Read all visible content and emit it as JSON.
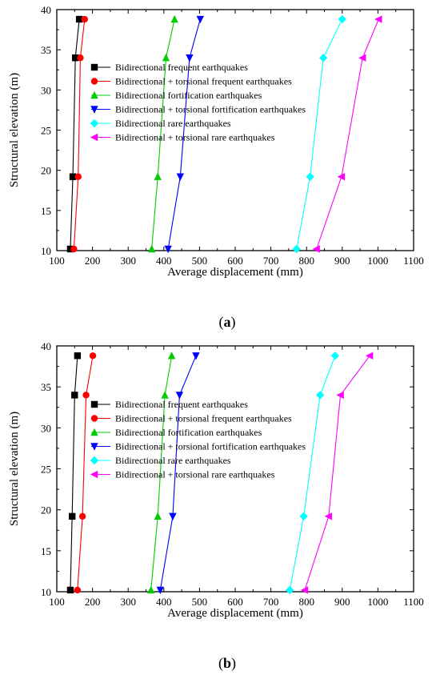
{
  "chart_data": [
    {
      "type": "line",
      "panel_label": "a",
      "xlabel": "Average displacement (mm)",
      "ylabel": "Structural elevation (m)",
      "xlim": [
        100,
        1100
      ],
      "ylim": [
        10,
        40
      ],
      "xticks": [
        100,
        200,
        300,
        400,
        500,
        600,
        700,
        800,
        900,
        1000,
        1100
      ],
      "yticks": [
        10,
        15,
        20,
        25,
        30,
        35,
        40
      ],
      "grid": false,
      "legend_position": "top-right",
      "series": [
        {
          "name": "Bidirectional frequent earthquakes",
          "color": "#000000",
          "marker": "square",
          "points": [
            [
              138,
              10.2
            ],
            [
              145,
              19.2
            ],
            [
              152,
              34.0
            ],
            [
              163,
              38.8
            ]
          ]
        },
        {
          "name": "Bidirectional + torsional frequent earthquakes",
          "color": "#ff0000",
          "marker": "circle",
          "points": [
            [
              148,
              10.2
            ],
            [
              160,
              19.2
            ],
            [
              166,
              34.0
            ],
            [
              178,
              38.8
            ]
          ]
        },
        {
          "name": "Bidirectional fortification earthquakes",
          "color": "#00cc00",
          "marker": "triangle-up",
          "points": [
            [
              366,
              10.2
            ],
            [
              383,
              19.2
            ],
            [
              406,
              34.0
            ],
            [
              430,
              38.8
            ]
          ]
        },
        {
          "name": "Bidirectional + torsional fortification earthquakes",
          "color": "#0000ff",
          "marker": "triangle-down",
          "points": [
            [
              412,
              10.2
            ],
            [
              446,
              19.2
            ],
            [
              472,
              34.0
            ],
            [
              502,
              38.8
            ]
          ]
        },
        {
          "name": "Bidirectional rare earthquakes",
          "color": "#00ffff",
          "marker": "diamond",
          "points": [
            [
              772,
              10.2
            ],
            [
              810,
              19.2
            ],
            [
              847,
              34.0
            ],
            [
              900,
              38.8
            ]
          ]
        },
        {
          "name": "Bidirectional + torsional rare earthquakes",
          "color": "#ff00ff",
          "marker": "triangle-left",
          "points": [
            [
              828,
              10.2
            ],
            [
              898,
              19.2
            ],
            [
              957,
              34.0
            ],
            [
              1002,
              38.8
            ]
          ]
        }
      ]
    },
    {
      "type": "line",
      "panel_label": "b",
      "xlabel": "Average displacement (mm)",
      "ylabel": "Structural elevation (m)",
      "xlim": [
        100,
        1100
      ],
      "ylim": [
        10,
        40
      ],
      "xticks": [
        100,
        200,
        300,
        400,
        500,
        600,
        700,
        800,
        900,
        1000,
        1100
      ],
      "yticks": [
        10,
        15,
        20,
        25,
        30,
        35,
        40
      ],
      "grid": false,
      "legend_position": "top-right",
      "series": [
        {
          "name": "Bidirectional frequent earthquakes",
          "color": "#000000",
          "marker": "square",
          "points": [
            [
              138,
              10.2
            ],
            [
              143,
              19.2
            ],
            [
              150,
              34.0
            ],
            [
              158,
              38.8
            ]
          ]
        },
        {
          "name": "Bidirectional + torsional frequent earthquakes",
          "color": "#ff0000",
          "marker": "circle",
          "points": [
            [
              158,
              10.2
            ],
            [
              172,
              19.2
            ],
            [
              182,
              34.0
            ],
            [
              201,
              38.8
            ]
          ]
        },
        {
          "name": "Bidirectional fortification earthquakes",
          "color": "#00cc00",
          "marker": "triangle-up",
          "points": [
            [
              364,
              10.2
            ],
            [
              383,
              19.2
            ],
            [
              403,
              34.0
            ],
            [
              422,
              38.8
            ]
          ]
        },
        {
          "name": "Bidirectional + torsional fortification earthquakes",
          "color": "#0000ff",
          "marker": "triangle-down",
          "points": [
            [
              390,
              10.2
            ],
            [
              425,
              19.2
            ],
            [
              444,
              34.0
            ],
            [
              490,
              38.8
            ]
          ]
        },
        {
          "name": "Bidirectional rare earthquakes",
          "color": "#00ffff",
          "marker": "diamond",
          "points": [
            [
              753,
              10.2
            ],
            [
              792,
              19.2
            ],
            [
              838,
              34.0
            ],
            [
              880,
              38.8
            ]
          ]
        },
        {
          "name": "Bidirectional + torsional rare earthquakes",
          "color": "#ff00ff",
          "marker": "triangle-left",
          "points": [
            [
              795,
              10.2
            ],
            [
              862,
              19.2
            ],
            [
              895,
              34.0
            ],
            [
              977,
              38.8
            ]
          ]
        }
      ]
    }
  ]
}
